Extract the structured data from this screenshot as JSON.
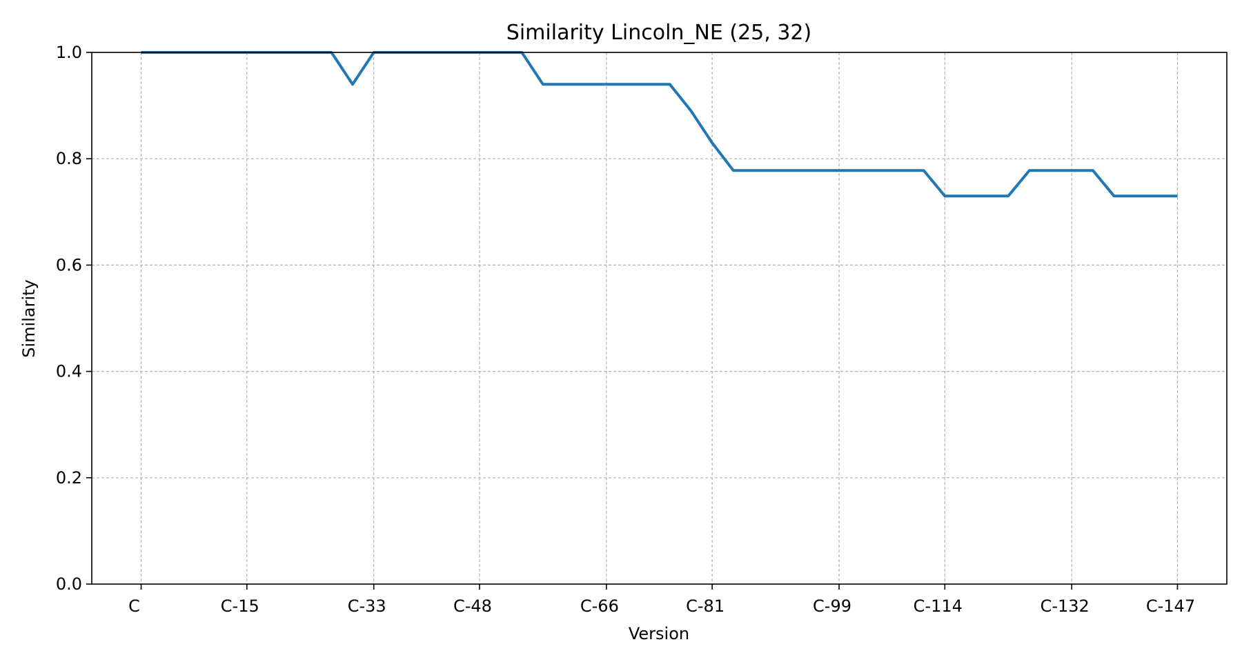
{
  "chart_data": {
    "type": "line",
    "title": "Similarity Lincoln_NE (25, 32)",
    "xlabel": "Version",
    "ylabel": "Similarity",
    "ylim": [
      0,
      1.0
    ],
    "yticks": [
      "0.0",
      "0.2",
      "0.4",
      "0.6",
      "0.8",
      "1.0"
    ],
    "grid": true,
    "xtick_labels": [
      "C",
      "C-15",
      "C-33",
      "C-48",
      "C-66",
      "C-81",
      "C-99",
      "C-114",
      "C-132",
      "C-147"
    ],
    "xtick_positions": [
      0,
      15,
      33,
      48,
      66,
      81,
      99,
      114,
      132,
      147
    ],
    "xlim": [
      -7,
      154
    ],
    "color": "#1f77b4",
    "series": [
      {
        "x": [
          0,
          27,
          30,
          33,
          54,
          57,
          75,
          78,
          81,
          84,
          111,
          114,
          117,
          123,
          126,
          135,
          138,
          147
        ],
        "values": [
          1.0,
          1.0,
          0.94,
          1.0,
          1.0,
          0.94,
          0.94,
          0.89,
          0.83,
          0.778,
          0.778,
          0.73,
          0.73,
          0.73,
          0.778,
          0.778,
          0.73,
          0.73
        ]
      }
    ]
  }
}
